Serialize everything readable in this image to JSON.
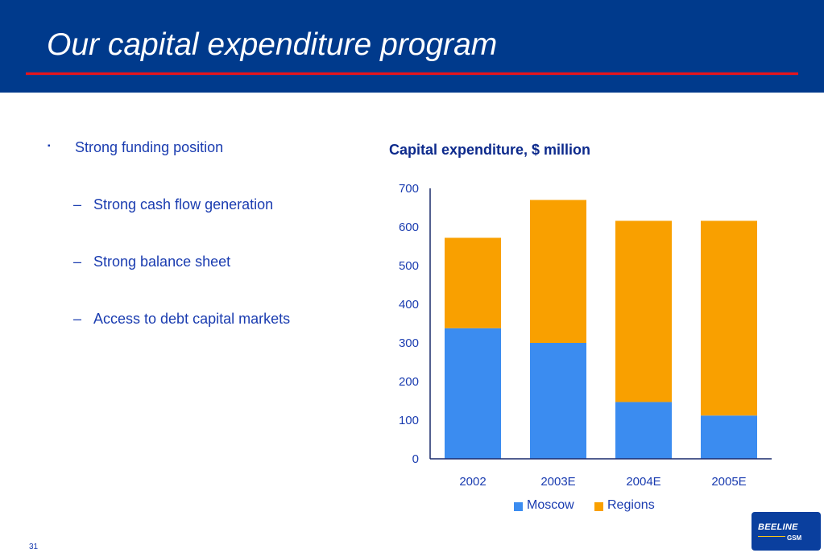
{
  "slide": {
    "title": "Our capital expenditure program",
    "page_number": "31"
  },
  "bullets": {
    "main": "Strong funding position",
    "marker": "▪",
    "subs": [
      "Strong cash flow generation",
      "Strong balance sheet",
      "Access to debt capital markets"
    ],
    "dash": "–"
  },
  "logo": {
    "name": "BEELINE",
    "sub": "GSM"
  },
  "colors": {
    "header_bg": "#003a8c",
    "title_rule": "#e8141c",
    "text_blue": "#1a3cb0",
    "moscow": "#3b8cf0",
    "regions": "#f9a000"
  },
  "chart_data": {
    "type": "bar",
    "stacked": true,
    "title": "Capital expenditure, $ million",
    "categories": [
      "2002",
      "2003E",
      "2004E",
      "2005E"
    ],
    "series": [
      {
        "name": "Moscow",
        "values": [
          338,
          300,
          147,
          112
        ],
        "color": "#3b8cf0"
      },
      {
        "name": "Regions",
        "values": [
          234,
          370,
          469,
          504
        ],
        "color": "#f9a000"
      }
    ],
    "ylim": [
      0,
      700
    ],
    "yticks": [
      0,
      100,
      200,
      300,
      400,
      500,
      600,
      700
    ],
    "xlabel": "",
    "ylabel": "",
    "grid": false,
    "legend": "bottom"
  }
}
